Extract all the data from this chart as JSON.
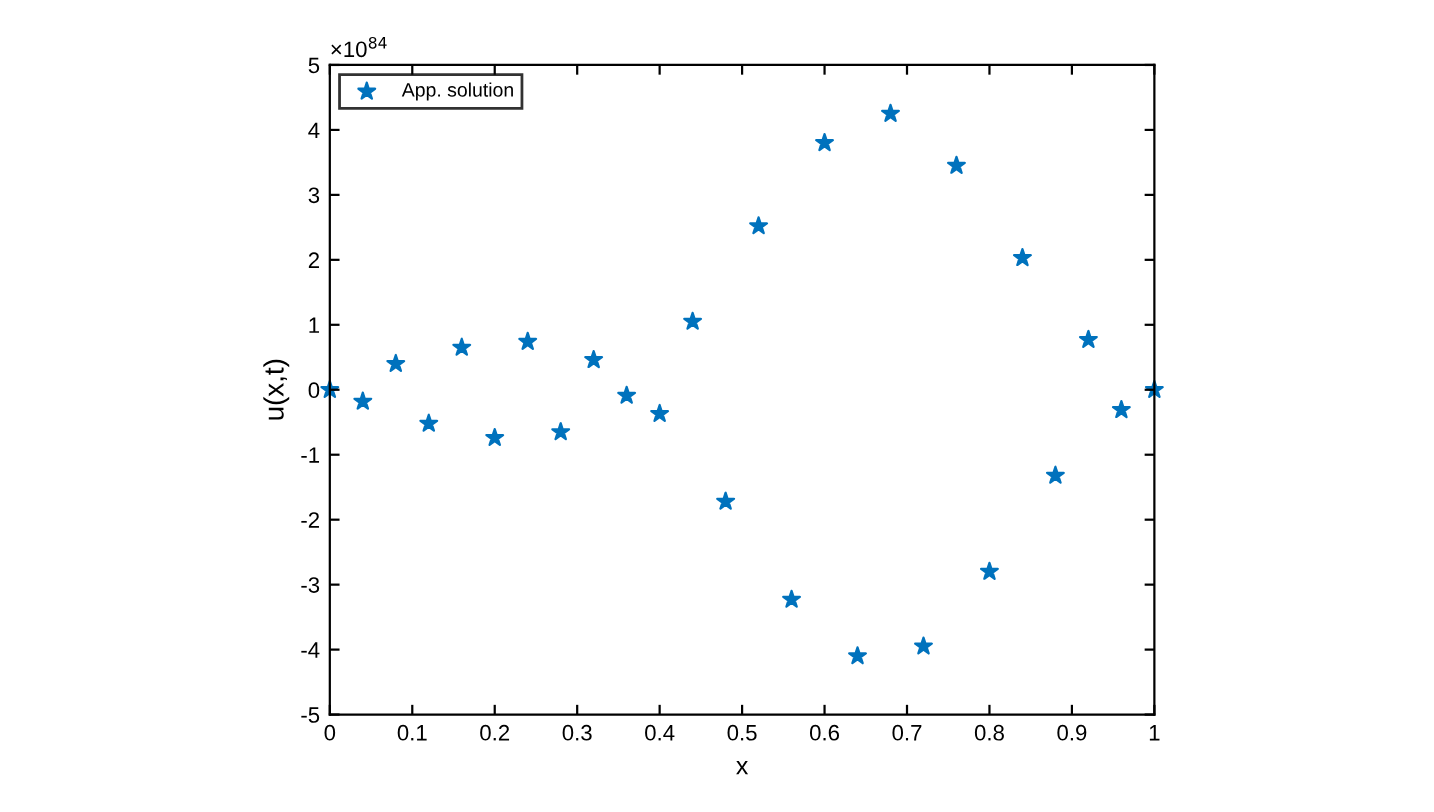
{
  "chart_data": {
    "type": "scatter",
    "xlabel": "x",
    "ylabel": "u(x,t)",
    "annotations": [
      "×10$^{84}$"
    ],
    "x": [
      0,
      0.04,
      0.08,
      0.12,
      0.16,
      0.2,
      0.24,
      0.28,
      0.32,
      0.36,
      0.4,
      0.44,
      0.48,
      0.52,
      0.56,
      0.6,
      0.64,
      0.68,
      0.72,
      0.76,
      0.8,
      0.84,
      0.88,
      0.92,
      0.96,
      1.0
    ],
    "series": [
      {
        "name": "App. solution",
        "color": "#0072bd",
        "values": [
          0,
          -0.18,
          0.4,
          -0.52,
          0.65,
          -0.74,
          0.74,
          -0.65,
          0.46,
          -0.09,
          -0.37,
          1.05,
          -1.72,
          2.52,
          -3.23,
          3.8,
          -4.1,
          4.25,
          -3.95,
          3.45,
          -2.8,
          2.03,
          -1.32,
          0.77,
          -0.31,
          0
        ]
      }
    ],
    "marker": "star",
    "xlim": [
      0,
      1
    ],
    "ylim": [
      -5,
      5
    ],
    "xticks": [
      0,
      0.1,
      0.2,
      0.3,
      0.4,
      0.5,
      0.6,
      0.7,
      0.8,
      0.9,
      1
    ],
    "yticks": [
      -5,
      -4,
      -3,
      -2,
      -1,
      0,
      1,
      2,
      3,
      4,
      5
    ],
    "legend": "top left",
    "grid": false
  }
}
